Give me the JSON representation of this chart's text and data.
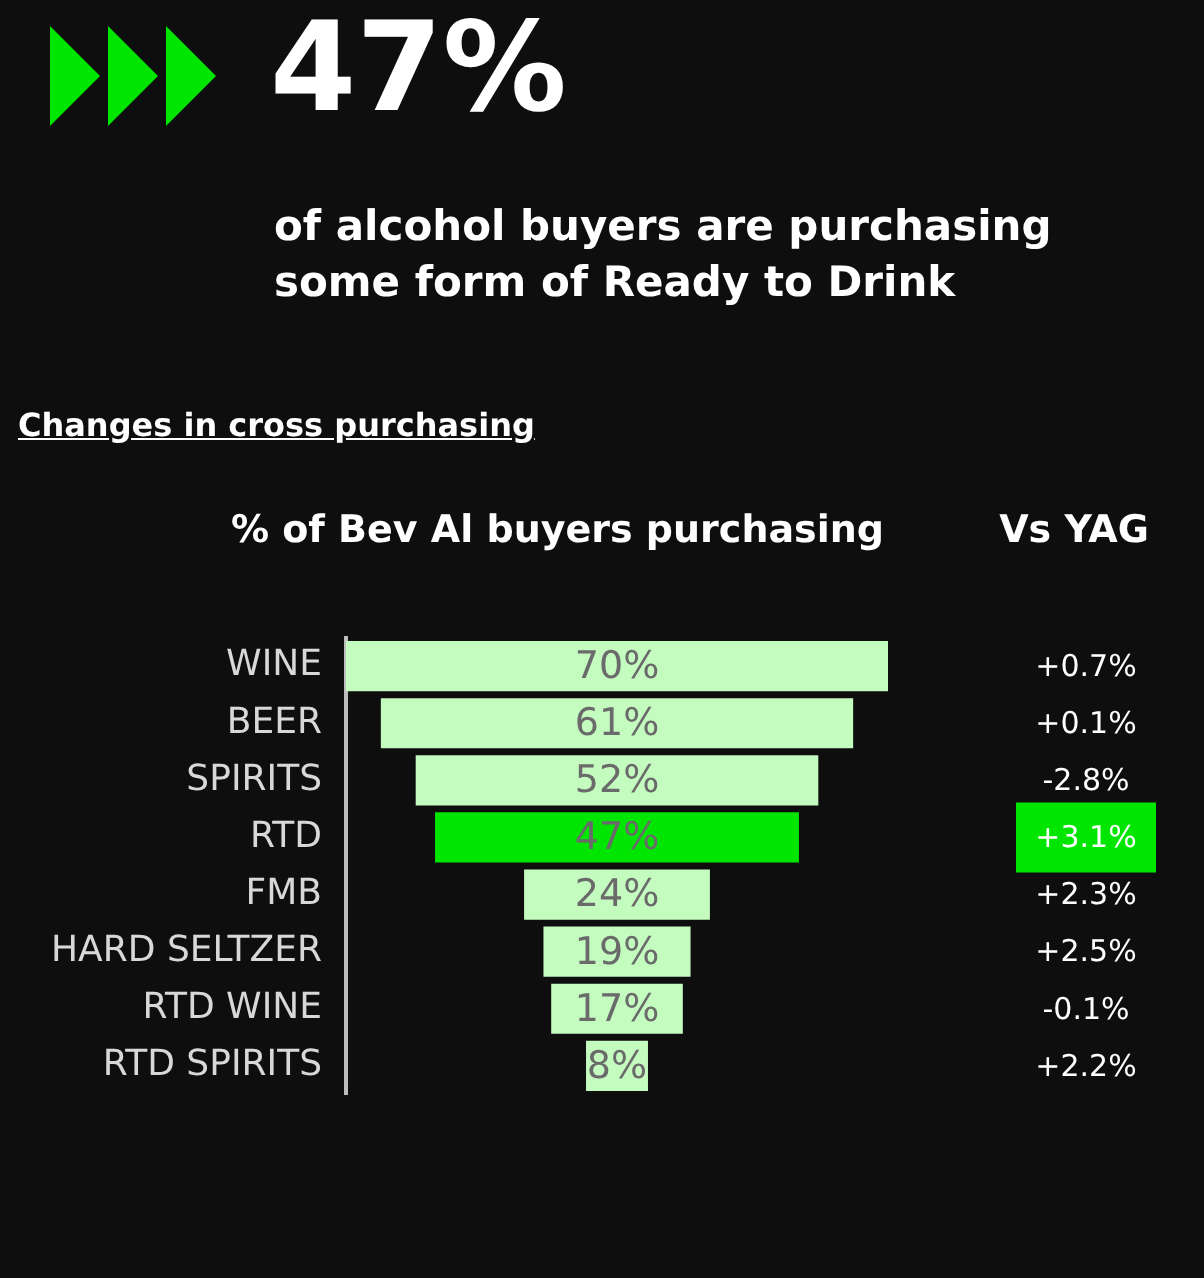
{
  "chart_data": {
    "type": "other",
    "title": "47%",
    "subtitle": "of alcohol buyers are purchasing some form of Ready to Drink",
    "annotations": [
      "Changes in cross purchasing",
      "Vs YAG"
    ],
    "categories": [
      "WINE",
      "BEER",
      "SPIRITS",
      "RTD",
      "FMB",
      "HARD SELTZER",
      "RTD WINE",
      "RTD SPIRITS"
    ],
    "series": [
      {
        "name": "% of Bev Al buyers purchasing",
        "colors": [
          "#c4fcc0",
          "#c4fcc0",
          "#c4fcc0",
          "#00e600",
          "#c4fcc0",
          "#c4fcc0",
          "#c4fcc0",
          "#c4fcc0"
        ],
        "values": [
          70,
          61,
          52,
          47,
          24,
          19,
          17,
          8
        ],
        "value_labels": [
          "70%",
          "61%",
          "52%",
          "47%",
          "24%",
          "19%",
          "17%",
          "8%"
        ]
      },
      {
        "color": "#ffffff",
        "colors": [
          null,
          null,
          null,
          "#00e600",
          null,
          null,
          null,
          null
        ],
        "values": [
          0.7,
          0.1,
          -2.8,
          3.1,
          2.3,
          2.5,
          -0.1,
          2.2
        ],
        "value_labels": [
          "+0.7%",
          "+0.1%",
          "-2.8%",
          "+3.1%",
          "+2.3%",
          "+2.5%",
          "-0.1%",
          "+2.2%"
        ]
      }
    ]
  }
}
